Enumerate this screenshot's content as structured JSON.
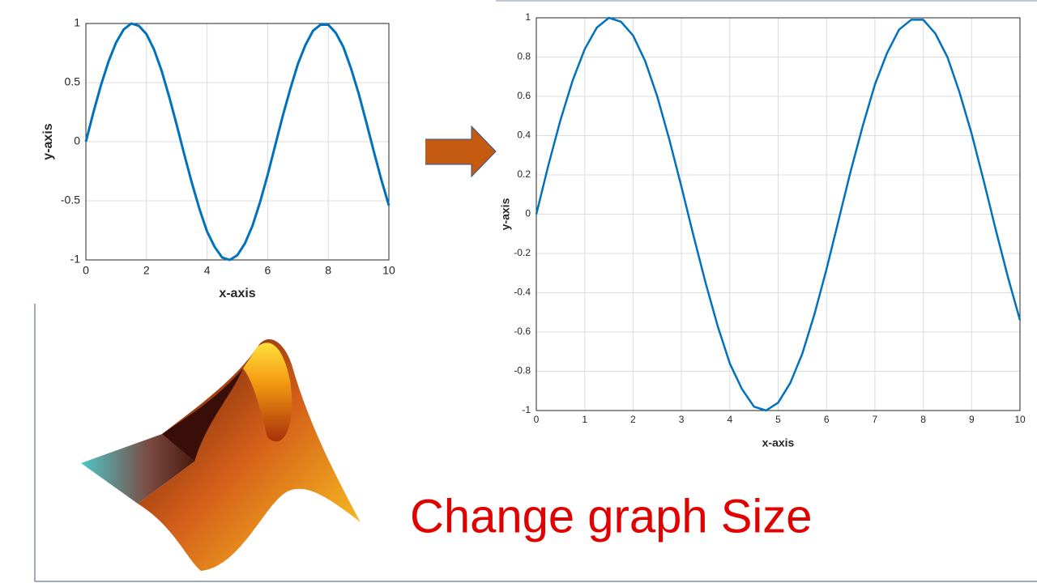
{
  "chart_data": [
    {
      "type": "line",
      "xlabel": "x-axis",
      "ylabel": "y-axis",
      "color": "#0072bd",
      "grid": true,
      "x": [
        0,
        0.25,
        0.5,
        0.75,
        1,
        1.25,
        1.5,
        1.75,
        2,
        2.25,
        2.5,
        2.75,
        3,
        3.25,
        3.5,
        3.75,
        4,
        4.25,
        4.5,
        4.75,
        5,
        5.25,
        5.5,
        5.75,
        6,
        6.25,
        6.5,
        6.75,
        7,
        7.25,
        7.5,
        7.75,
        8,
        8.25,
        8.5,
        8.75,
        9,
        9.25,
        9.5,
        9.75,
        10
      ],
      "values": [
        0,
        0.25,
        0.48,
        0.68,
        0.84,
        0.95,
        1.0,
        0.98,
        0.91,
        0.78,
        0.6,
        0.38,
        0.14,
        -0.11,
        -0.35,
        -0.57,
        -0.76,
        -0.89,
        -0.98,
        -1.0,
        -0.96,
        -0.86,
        -0.71,
        -0.51,
        -0.28,
        -0.03,
        0.22,
        0.45,
        0.66,
        0.82,
        0.94,
        0.99,
        0.99,
        0.92,
        0.8,
        0.62,
        0.41,
        0.17,
        -0.08,
        -0.32,
        -0.54
      ],
      "xlim": [
        0,
        10
      ],
      "xticks": [
        0,
        2,
        4,
        6,
        8,
        10
      ],
      "ylim": [
        -1,
        1
      ],
      "yticks": [
        -1,
        -0.5,
        0,
        0.5,
        1
      ]
    },
    {
      "type": "line",
      "xlabel": "x-axis",
      "ylabel": "y-axis",
      "color": "#0072bd",
      "grid": true,
      "x": [
        0,
        0.25,
        0.5,
        0.75,
        1,
        1.25,
        1.5,
        1.75,
        2,
        2.25,
        2.5,
        2.75,
        3,
        3.25,
        3.5,
        3.75,
        4,
        4.25,
        4.5,
        4.75,
        5,
        5.25,
        5.5,
        5.75,
        6,
        6.25,
        6.5,
        6.75,
        7,
        7.25,
        7.5,
        7.75,
        8,
        8.25,
        8.5,
        8.75,
        9,
        9.25,
        9.5,
        9.75,
        10
      ],
      "values": [
        0,
        0.25,
        0.48,
        0.68,
        0.84,
        0.95,
        1.0,
        0.98,
        0.91,
        0.78,
        0.6,
        0.38,
        0.14,
        -0.11,
        -0.35,
        -0.57,
        -0.76,
        -0.89,
        -0.98,
        -1.0,
        -0.96,
        -0.86,
        -0.71,
        -0.51,
        -0.28,
        -0.03,
        0.22,
        0.45,
        0.66,
        0.82,
        0.94,
        0.99,
        0.99,
        0.92,
        0.8,
        0.62,
        0.41,
        0.17,
        -0.08,
        -0.32,
        -0.54
      ],
      "xlim": [
        0,
        10
      ],
      "xticks": [
        0,
        1,
        2,
        3,
        4,
        5,
        6,
        7,
        8,
        9,
        10
      ],
      "ylim": [
        -1,
        1
      ],
      "yticks": [
        -1,
        -0.8,
        -0.6,
        -0.4,
        -0.2,
        0,
        0.2,
        0.4,
        0.6,
        0.8,
        1
      ]
    }
  ],
  "caption": "Change graph Size"
}
